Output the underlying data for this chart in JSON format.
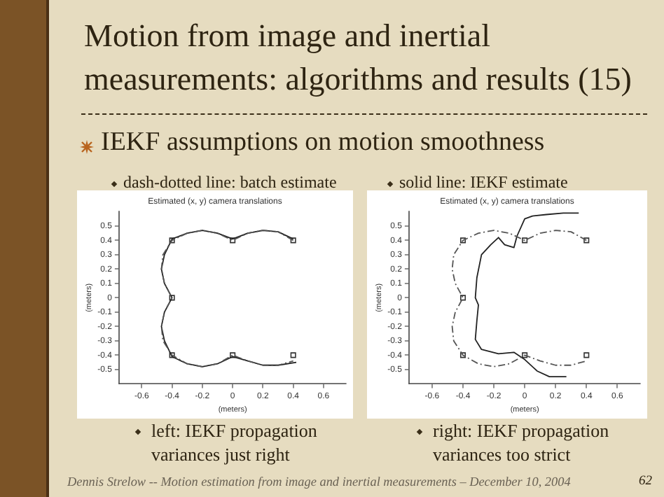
{
  "chart_data": [
    {
      "type": "line",
      "title": "Estimated (x, y) camera translations",
      "xlabel": "(meters)",
      "ylabel": "(meters)",
      "xlim": [
        -0.75,
        0.75
      ],
      "xticks": [
        -0.6,
        -0.4,
        -0.2,
        0,
        0.2,
        0.4,
        0.6
      ],
      "ylim": [
        -0.6,
        0.6
      ],
      "yticks": [
        -0.5,
        -0.4,
        -0.3,
        -0.2,
        -0.1,
        0,
        0.1,
        0.2,
        0.3,
        0.4,
        0.5
      ],
      "grid": false,
      "series": [
        {
          "type": "line",
          "line_style": "dashed",
          "color": "#555555",
          "x": [
            0.4,
            0.3,
            0.2,
            0.1,
            0,
            -0.1,
            -0.2,
            -0.3,
            -0.4,
            -0.46,
            -0.47,
            -0.45,
            -0.4,
            -0.45,
            -0.47,
            -0.46,
            -0.4,
            -0.3,
            -0.2,
            -0.1,
            0,
            0.1,
            0.2,
            0.3,
            0.4
          ],
          "values": [
            0.4,
            0.46,
            0.47,
            0.45,
            0.4,
            0.45,
            0.47,
            0.45,
            0.4,
            0.3,
            0.2,
            0.1,
            0,
            -0.1,
            -0.2,
            -0.3,
            -0.4,
            -0.46,
            -0.48,
            -0.46,
            -0.4,
            -0.44,
            -0.47,
            -0.47,
            -0.44
          ]
        },
        {
          "type": "line",
          "line_style": "solid",
          "color": "#222222",
          "x": [
            0.4,
            0.3,
            0.2,
            0.1,
            0,
            -0.1,
            -0.2,
            -0.3,
            -0.4,
            -0.45,
            -0.47,
            -0.45,
            -0.4,
            -0.45,
            -0.47,
            -0.45,
            -0.4,
            -0.3,
            -0.2,
            -0.1,
            0,
            0.1,
            0.2,
            0.3,
            0.42
          ],
          "values": [
            0.41,
            0.46,
            0.47,
            0.45,
            0.41,
            0.45,
            0.47,
            0.45,
            0.41,
            0.3,
            0.2,
            0.1,
            0,
            -0.1,
            -0.2,
            -0.3,
            -0.41,
            -0.46,
            -0.48,
            -0.46,
            -0.41,
            -0.44,
            -0.47,
            -0.47,
            -0.45
          ]
        },
        {
          "type": "scatter",
          "marker": "square",
          "color": "#333333",
          "x": [
            -0.4,
            0,
            0.4,
            -0.4,
            -0.4,
            0,
            0.4
          ],
          "values": [
            0.4,
            0.4,
            0.4,
            0,
            -0.4,
            -0.4,
            -0.4
          ]
        }
      ],
      "annotations": [
        "Motion from image and inertial measurements: algorithms and results (15)",
        "IEKF assumptions on motion smoothness",
        "dash-dotted line: batch estimate",
        "left: IEKF propagation variances just right",
        "Dennis Strelow -- Motion estimation from image and inertial measurements – December 10, 2004",
        "62"
      ]
    },
    {
      "type": "line",
      "title": "Estimated (x, y) camera translations",
      "xlabel": "(meters)",
      "ylabel": "(meters)",
      "xlim": [
        -0.75,
        0.75
      ],
      "xticks": [
        -0.6,
        -0.4,
        -0.2,
        0,
        0.2,
        0.4,
        0.6
      ],
      "ylim": [
        -0.6,
        0.6
      ],
      "yticks": [
        -0.5,
        -0.4,
        -0.3,
        -0.2,
        -0.1,
        0,
        0.1,
        0.2,
        0.3,
        0.4,
        0.5
      ],
      "grid": false,
      "series": [
        {
          "type": "line",
          "line_style": "dashed",
          "color": "#555555",
          "x": [
            0.4,
            0.3,
            0.2,
            0.1,
            0,
            -0.1,
            -0.2,
            -0.3,
            -0.4,
            -0.46,
            -0.47,
            -0.45,
            -0.4,
            -0.45,
            -0.47,
            -0.46,
            -0.4,
            -0.3,
            -0.2,
            -0.1,
            0,
            0.1,
            0.2,
            0.3,
            0.4
          ],
          "values": [
            0.4,
            0.46,
            0.47,
            0.45,
            0.4,
            0.45,
            0.47,
            0.45,
            0.4,
            0.3,
            0.2,
            0.1,
            0,
            -0.1,
            -0.2,
            -0.3,
            -0.4,
            -0.46,
            -0.48,
            -0.46,
            -0.4,
            -0.44,
            -0.47,
            -0.47,
            -0.44
          ]
        },
        {
          "type": "line",
          "line_style": "solid",
          "color": "#222222",
          "x": [
            0.35,
            0.25,
            0.14,
            0.05,
            0,
            -0.05,
            -0.07,
            -0.13,
            -0.17,
            -0.22,
            -0.28,
            -0.31,
            -0.32,
            -0.3,
            -0.31,
            -0.32,
            -0.28,
            -0.17,
            -0.07,
            0,
            0.08,
            0.16,
            0.27
          ],
          "values": [
            0.59,
            0.59,
            0.58,
            0.57,
            0.55,
            0.43,
            0.35,
            0.37,
            0.42,
            0.37,
            0.3,
            0.14,
            0,
            -0.05,
            -0.16,
            -0.29,
            -0.36,
            -0.39,
            -0.38,
            -0.43,
            -0.51,
            -0.55,
            -0.55
          ]
        },
        {
          "type": "scatter",
          "marker": "square",
          "color": "#333333",
          "x": [
            -0.4,
            0,
            0.4,
            -0.4,
            -0.4,
            0,
            0.4
          ],
          "values": [
            0.4,
            0.4,
            0.4,
            0,
            -0.4,
            -0.4,
            -0.4
          ]
        }
      ],
      "annotations": [
        "solid line: IEKF estimate",
        "right: IEKF propagation variances too strict"
      ]
    }
  ]
}
